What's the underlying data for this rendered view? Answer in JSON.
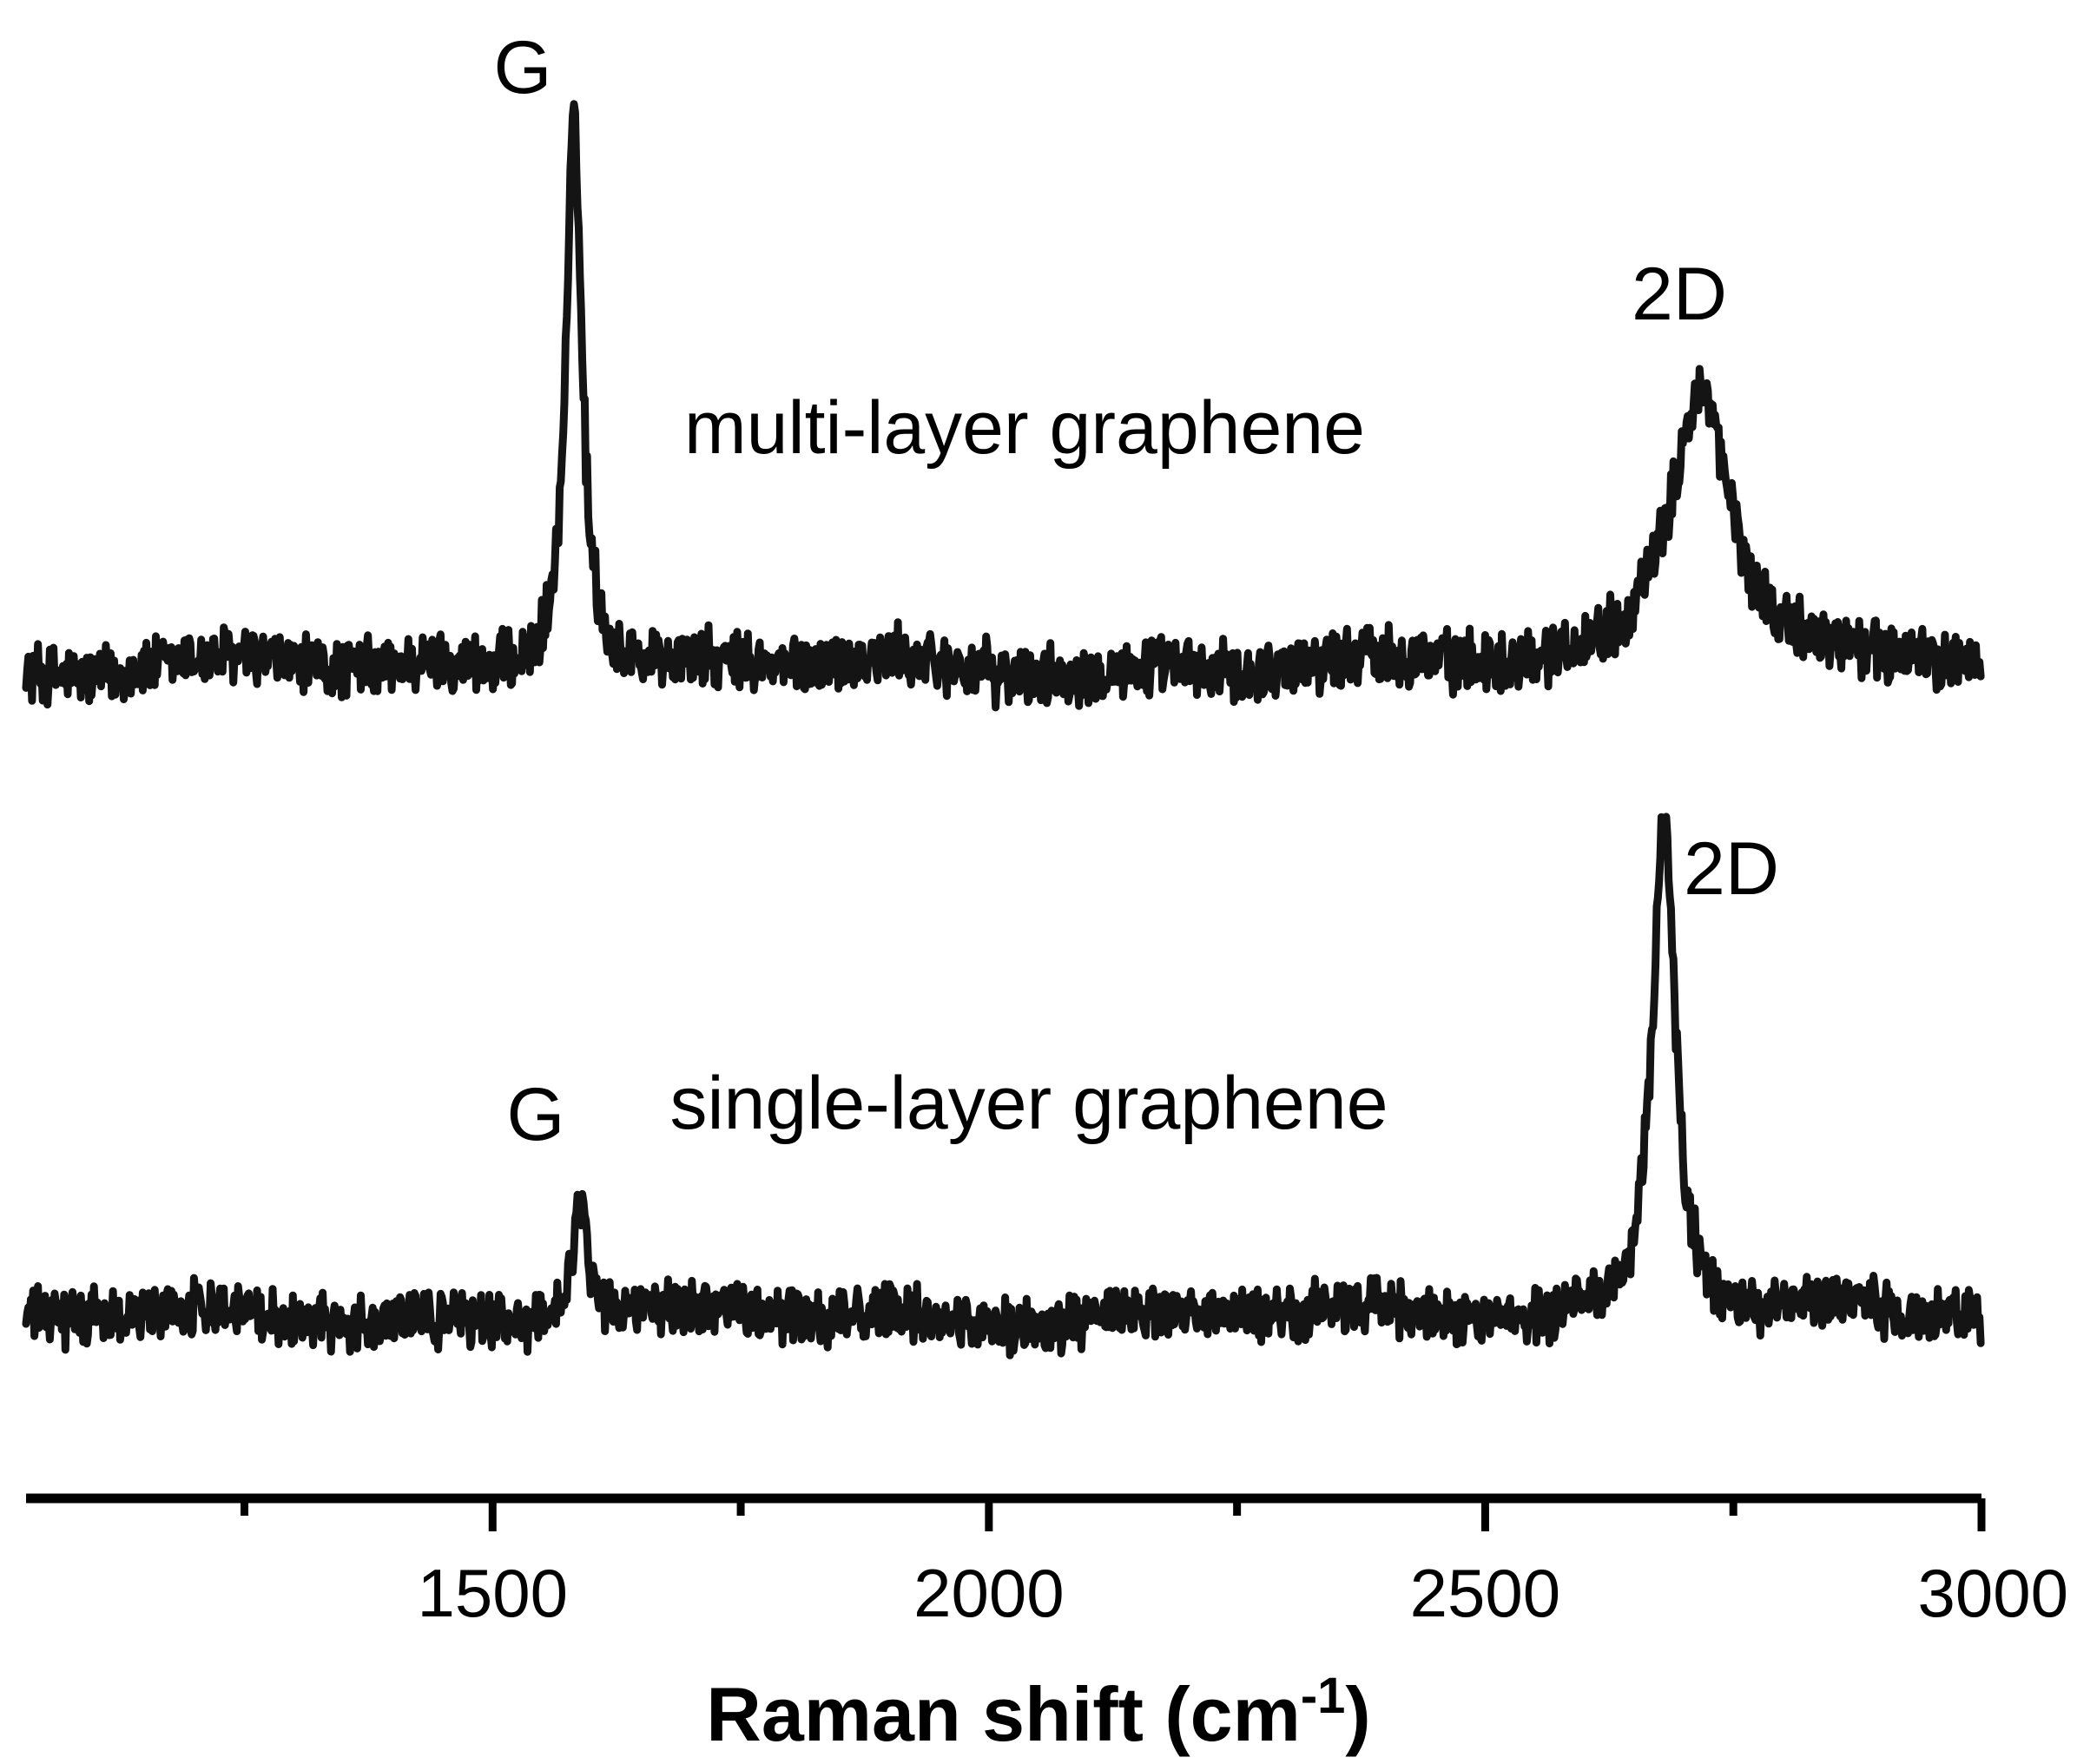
{
  "chart_data": {
    "type": "line",
    "xlabel": "Raman shift (cm",
    "xlabel_superscript": "-1",
    "xlabel_close": ")",
    "ylabel": "",
    "xlim": [
      1030,
      3000
    ],
    "grid": false,
    "x_ticks": [
      {
        "value": 1500,
        "label": "1500"
      },
      {
        "value": 2000,
        "label": "2000"
      },
      {
        "value": 2500,
        "label": "2500"
      },
      {
        "value": 3000,
        "label": "3000"
      }
    ],
    "x_minor_ticks": [
      1250,
      1750,
      2250,
      2750
    ],
    "series": [
      {
        "name": "multi-layer graphene",
        "color": "#141414",
        "baseline": 0.0,
        "noise": 0.05,
        "peaks": [
          {
            "label": "G",
            "position": 1582,
            "height": 1.0,
            "width": 10
          },
          {
            "label": "2D",
            "position": 2717,
            "height": 0.52,
            "width": 38
          }
        ]
      },
      {
        "name": "single-layer graphene",
        "color": "#141414",
        "baseline": 0.0,
        "noise": 0.05,
        "peaks": [
          {
            "label": "G",
            "position": 1588,
            "height": 0.24,
            "width": 10
          },
          {
            "label": "2D",
            "position": 2680,
            "height": 1.0,
            "width": 14
          }
        ]
      }
    ]
  }
}
